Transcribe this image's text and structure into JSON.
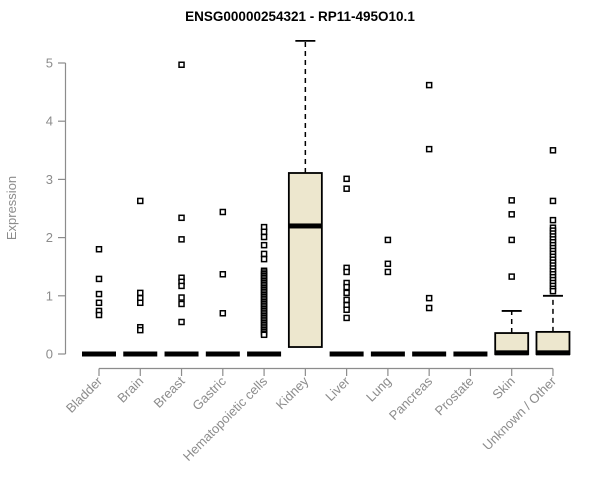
{
  "chart_data": {
    "type": "boxplot",
    "title": "ENSG00000254321 - RP11-495O10.1",
    "ylabel": "Expression",
    "ylim": [
      0,
      5
    ],
    "yticks": [
      0,
      1,
      2,
      3,
      4,
      5
    ],
    "grid": false,
    "legend": "none",
    "categories": [
      "Bladder",
      "Brain",
      "Breast",
      "Gastric",
      "Hematopoietic cells",
      "Kidney",
      "Liver",
      "Lung",
      "Pancreas",
      "Prostate",
      "Skin",
      "Unknown / Other"
    ],
    "series": [
      {
        "label": "Bladder",
        "q1": 0,
        "median": 0,
        "q3": 0,
        "whisker_low": 0,
        "whisker_high": 0,
        "outliers": [
          1.8,
          1.29,
          1.03,
          0.88,
          0.74,
          0.67
        ]
      },
      {
        "label": "Brain",
        "q1": 0,
        "median": 0,
        "q3": 0,
        "whisker_low": 0,
        "whisker_high": 0,
        "outliers": [
          2.63,
          1.05,
          0.96,
          0.88,
          0.46,
          0.41
        ]
      },
      {
        "label": "Breast",
        "q1": 0,
        "median": 0,
        "q3": 0,
        "whisker_low": 0,
        "whisker_high": 0,
        "outliers": [
          4.97,
          2.34,
          1.97,
          1.31,
          1.24,
          1.17,
          0.97,
          0.86,
          0.55
        ]
      },
      {
        "label": "Gastric",
        "q1": 0,
        "median": 0,
        "q3": 0,
        "whisker_low": 0,
        "whisker_high": 0,
        "outliers": [
          2.44,
          1.37,
          0.7
        ]
      },
      {
        "label": "Hematopoietic cells",
        "q1": 0,
        "median": 0,
        "q3": 0,
        "whisker_low": 0,
        "whisker_high": 0,
        "outliers": [
          2.18,
          2.1,
          2.01,
          1.87,
          1.72,
          1.63,
          1.43,
          1.4,
          1.37,
          1.34,
          1.31,
          1.28,
          1.25,
          1.22,
          1.19,
          1.16,
          1.13,
          1.1,
          1.07,
          1.04,
          1.01,
          0.98,
          0.95,
          0.92,
          0.89,
          0.86,
          0.83,
          0.8,
          0.77,
          0.74,
          0.71,
          0.68,
          0.65,
          0.62,
          0.59,
          0.56,
          0.53,
          0.5,
          0.47,
          0.44,
          0.41,
          0.38,
          0.35,
          0.33
        ]
      },
      {
        "label": "Kidney",
        "q1": 0.12,
        "median": 2.2,
        "q3": 3.11,
        "whisker_low": 0.12,
        "whisker_high": 5.38,
        "outliers": []
      },
      {
        "label": "Liver",
        "q1": 0,
        "median": 0,
        "q3": 0,
        "whisker_low": 0,
        "whisker_high": 0,
        "outliers": [
          3.01,
          2.84,
          1.48,
          1.41,
          1.22,
          1.15,
          1.05,
          0.93,
          0.84,
          0.76,
          0.62
        ]
      },
      {
        "label": "Lung",
        "q1": 0,
        "median": 0,
        "q3": 0,
        "whisker_low": 0,
        "whisker_high": 0,
        "outliers": [
          1.96,
          1.55,
          1.41
        ]
      },
      {
        "label": "Pancreas",
        "q1": 0,
        "median": 0,
        "q3": 0,
        "whisker_low": 0,
        "whisker_high": 0,
        "outliers": [
          4.62,
          3.52,
          0.96,
          0.79
        ]
      },
      {
        "label": "Prostate",
        "q1": 0,
        "median": 0,
        "q3": 0,
        "whisker_low": 0,
        "whisker_high": 0,
        "outliers": []
      },
      {
        "label": "Skin",
        "q1": 0,
        "median": 0.02,
        "q3": 0.36,
        "whisker_low": 0,
        "whisker_high": 0.74,
        "outliers": [
          2.64,
          2.4,
          1.96,
          1.33
        ]
      },
      {
        "label": "Unknown / Other",
        "q1": 0,
        "median": 0.02,
        "q3": 0.38,
        "whisker_low": 0,
        "whisker_high": 1.0,
        "outliers": [
          3.5,
          2.63,
          2.3,
          2.17,
          2.12,
          2.07,
          2.02,
          1.97,
          1.92,
          1.87,
          1.82,
          1.77,
          1.72,
          1.67,
          1.62,
          1.57,
          1.52,
          1.47,
          1.42,
          1.37,
          1.32,
          1.27,
          1.22,
          1.17,
          1.12,
          1.08
        ]
      }
    ],
    "colors": {
      "box_fill": "#ede7ce",
      "box_stroke": "#000000",
      "axis": "#8c8c8c",
      "text_gray": "#8c8c8c",
      "title": "#000000",
      "background": "#ffffff"
    }
  }
}
